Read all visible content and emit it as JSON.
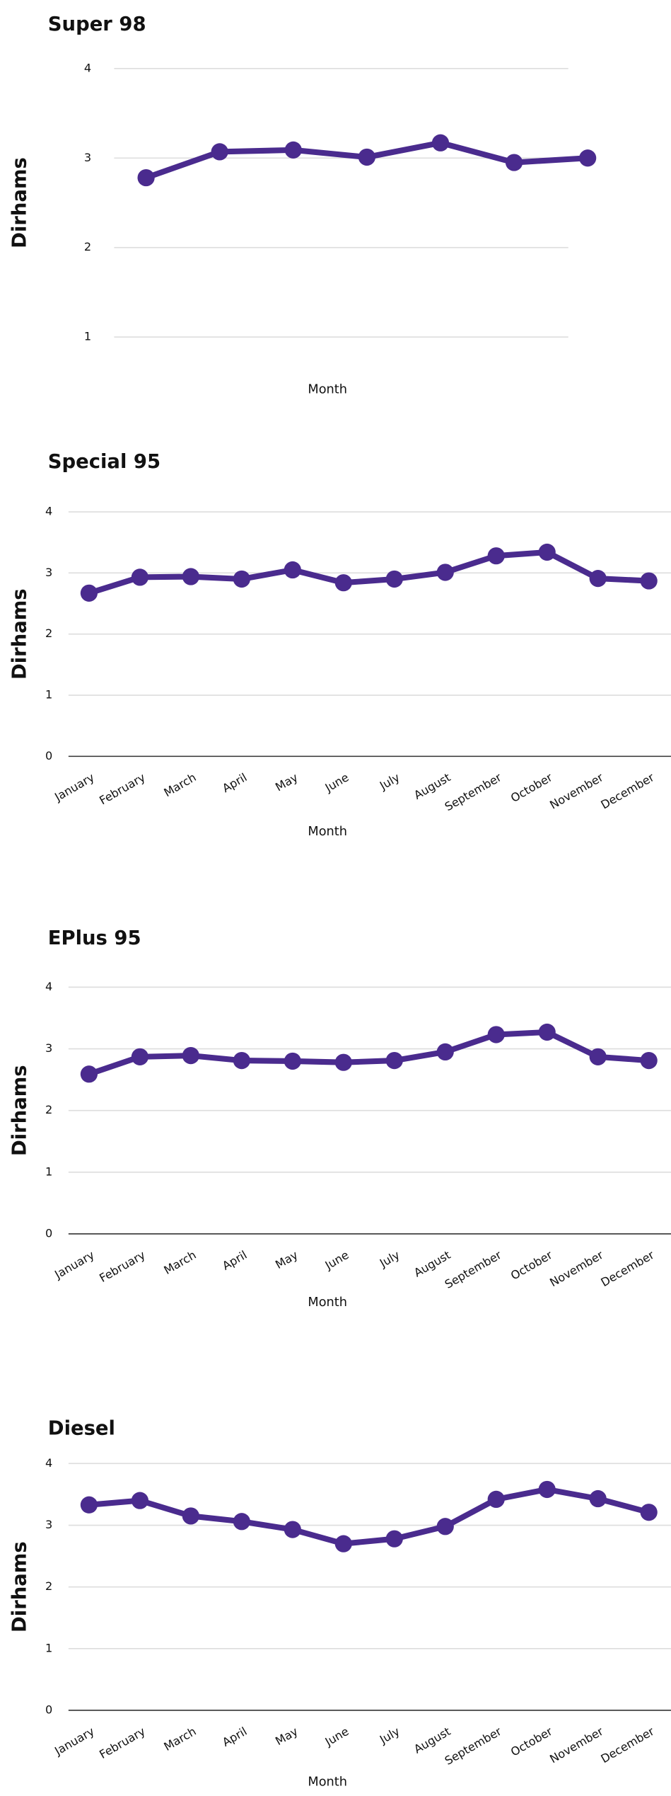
{
  "chart_data": [
    {
      "type": "line",
      "title": "Super 98",
      "x_label": "Month",
      "y_label": "Dirhams",
      "categories": [
        null,
        null,
        null,
        null,
        null,
        null,
        null
      ],
      "series": [
        {
          "name": "Super 98",
          "color": "#4a2b8e",
          "values": [
            2.78,
            3.07,
            3.09,
            3.01,
            3.17,
            2.95,
            3.0
          ]
        }
      ],
      "ylim": [
        1,
        4
      ],
      "yticks": [
        1,
        2,
        3,
        4
      ],
      "grid": true
    },
    {
      "type": "line",
      "title": "Special 95",
      "x_label": "Month",
      "y_label": "Dirhams",
      "categories": [
        "January",
        "February",
        "March",
        "April",
        "May",
        "June",
        "July",
        "August",
        "September",
        "October",
        "November",
        "December"
      ],
      "series": [
        {
          "name": "Special 95",
          "color": "#4a2b8e",
          "values": [
            2.67,
            2.93,
            2.94,
            2.9,
            3.05,
            2.84,
            2.9,
            3.01,
            3.28,
            3.34,
            2.91,
            2.87
          ]
        }
      ],
      "ylim": [
        0,
        4
      ],
      "yticks": [
        0,
        1,
        2,
        3,
        4
      ],
      "grid": true
    },
    {
      "type": "line",
      "title": "EPlus 95",
      "x_label": "Month",
      "y_label": "Dirhams",
      "categories": [
        "January",
        "February",
        "March",
        "April",
        "May",
        "June",
        "July",
        "August",
        "September",
        "October",
        "November",
        "December"
      ],
      "series": [
        {
          "name": "EPlus 95",
          "color": "#4a2b8e",
          "values": [
            2.59,
            2.87,
            2.89,
            2.81,
            2.8,
            2.78,
            2.81,
            2.95,
            3.23,
            3.27,
            2.87,
            2.81
          ]
        }
      ],
      "ylim": [
        0,
        4
      ],
      "yticks": [
        0,
        1,
        2,
        3,
        4
      ],
      "grid": true
    },
    {
      "type": "line",
      "title": "Diesel",
      "x_label": "Month",
      "y_label": "Dirhams",
      "categories": [
        "January",
        "February",
        "March",
        "April",
        "May",
        "June",
        "July",
        "August",
        "September",
        "October",
        "November",
        "December"
      ],
      "series": [
        {
          "name": "Diesel",
          "color": "#4a2b8e",
          "values": [
            3.33,
            3.4,
            3.15,
            3.06,
            2.93,
            2.7,
            2.78,
            2.98,
            3.42,
            3.58,
            3.43,
            3.21
          ]
        }
      ],
      "ylim": [
        0,
        4
      ],
      "yticks": [
        0,
        1,
        2,
        3,
        4
      ],
      "grid": true
    }
  ]
}
